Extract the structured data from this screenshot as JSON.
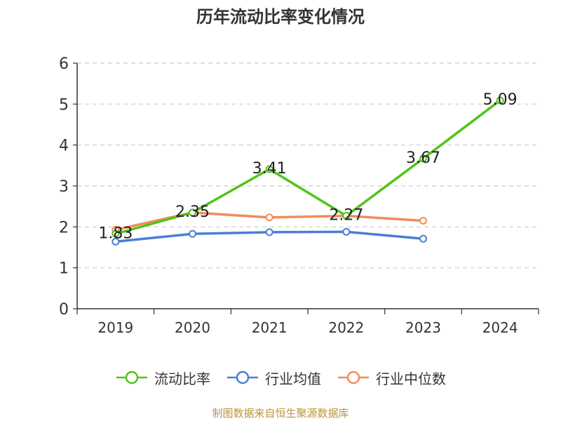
{
  "chart_data": {
    "type": "line",
    "title": "历年流动比率变化情况",
    "categories": [
      "2019",
      "2020",
      "2021",
      "2022",
      "2023",
      "2024"
    ],
    "ylim": [
      0,
      6
    ],
    "yticks": [
      0,
      1,
      2,
      3,
      4,
      5,
      6
    ],
    "grid": true,
    "legend_position": "bottom",
    "series": [
      {
        "name": "流动比率",
        "color": "#52c41a",
        "values": [
          1.83,
          2.35,
          3.41,
          2.27,
          3.67,
          5.09
        ],
        "labels": [
          "1.83",
          "2.35",
          "3.41",
          "2.27",
          "3.67",
          "5.09"
        ]
      },
      {
        "name": "行业均值",
        "color": "#4a7fd6",
        "values": [
          1.64,
          1.83,
          1.87,
          1.88,
          1.71,
          null
        ]
      },
      {
        "name": "行业中位数",
        "color": "#f28c5a",
        "values": [
          1.93,
          2.35,
          2.23,
          2.27,
          2.15,
          null
        ]
      }
    ]
  },
  "footer": {
    "source": "制图数据来自恒生聚源数据库"
  }
}
